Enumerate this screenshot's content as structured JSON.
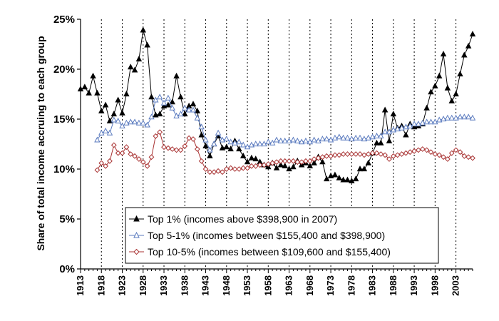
{
  "chart_data": {
    "type": "line",
    "title": "",
    "xlabel": "",
    "ylabel": "Share of total income accruing to each group",
    "xlim": [
      1913,
      2007
    ],
    "ylim": [
      0,
      25
    ],
    "y_ticks": [
      0,
      5,
      10,
      15,
      20,
      25
    ],
    "y_tick_labels": [
      "0%",
      "5%",
      "10%",
      "15%",
      "20%",
      "25%"
    ],
    "x_ticks": [
      1913,
      1918,
      1923,
      1928,
      1933,
      1938,
      1943,
      1948,
      1953,
      1958,
      1963,
      1968,
      1973,
      1978,
      1983,
      1988,
      1993,
      1998,
      2003
    ],
    "x_tick_labels": [
      "1913",
      "1918",
      "1923",
      "1928",
      "1933",
      "1938",
      "1943",
      "1948",
      "1953",
      "1958",
      "1963",
      "1968",
      "1973",
      "1978",
      "1983",
      "1988",
      "1993",
      "1998",
      "2003"
    ],
    "grid": "vertical dashed at x ticks",
    "legend_position": "bottom-left",
    "series": [
      {
        "name": "Top 1% (incomes above $398,900 in 2007)",
        "color": "#000000",
        "marker": "filled-triangle",
        "x": [
          1913,
          1914,
          1915,
          1916,
          1917,
          1918,
          1919,
          1920,
          1921,
          1922,
          1923,
          1924,
          1925,
          1926,
          1927,
          1928,
          1929,
          1930,
          1931,
          1932,
          1933,
          1934,
          1935,
          1936,
          1937,
          1938,
          1939,
          1940,
          1941,
          1942,
          1943,
          1944,
          1945,
          1946,
          1947,
          1948,
          1949,
          1950,
          1951,
          1952,
          1953,
          1954,
          1955,
          1956,
          1957,
          1958,
          1959,
          1960,
          1961,
          1962,
          1963,
          1964,
          1965,
          1966,
          1967,
          1968,
          1969,
          1970,
          1971,
          1972,
          1973,
          1974,
          1975,
          1976,
          1977,
          1978,
          1979,
          1980,
          1981,
          1982,
          1983,
          1984,
          1985,
          1986,
          1987,
          1988,
          1989,
          1990,
          1991,
          1992,
          1993,
          1994,
          1995,
          1996,
          1997,
          1998,
          1999,
          2000,
          2001,
          2002,
          2003,
          2004,
          2005,
          2006,
          2007
        ],
        "values": [
          18.0,
          18.2,
          17.6,
          19.3,
          17.6,
          15.8,
          16.4,
          14.8,
          15.5,
          16.9,
          15.6,
          17.5,
          20.2,
          19.9,
          21.0,
          23.9,
          22.4,
          17.2,
          15.4,
          15.5,
          16.3,
          16.4,
          16.7,
          19.3,
          17.2,
          15.5,
          16.3,
          16.5,
          15.8,
          13.4,
          12.3,
          11.3,
          12.5,
          13.3,
          12.1,
          12.2,
          12.0,
          12.8,
          12.0,
          11.3,
          10.7,
          11.1,
          11.0,
          10.7,
          10.4,
          10.2,
          10.6,
          10.1,
          10.4,
          10.3,
          10.0,
          10.2,
          10.8,
          10.4,
          10.6,
          10.3,
          10.6,
          11.2,
          10.7,
          9.0,
          9.3,
          9.4,
          9.1,
          8.9,
          8.9,
          8.8,
          9.0,
          10.0,
          10.0,
          10.6,
          11.6,
          12.6,
          12.6,
          15.9,
          12.8,
          15.5,
          14.1,
          14.3,
          13.4,
          14.5,
          14.2,
          14.3,
          14.5,
          16.1,
          17.7,
          18.3,
          19.3,
          21.5,
          18.1,
          16.8,
          17.5,
          19.5,
          21.4,
          22.3,
          23.5
        ]
      },
      {
        "name": "Top 5-1% (incomes between $155,400 and $398,900)",
        "color": "#5b7bbf",
        "marker": "hollow-triangle",
        "x": [
          1917,
          1918,
          1919,
          1920,
          1921,
          1922,
          1923,
          1924,
          1925,
          1926,
          1927,
          1928,
          1929,
          1930,
          1931,
          1932,
          1933,
          1934,
          1935,
          1936,
          1937,
          1938,
          1939,
          1940,
          1941,
          1942,
          1943,
          1944,
          1945,
          1946,
          1947,
          1948,
          1949,
          1950,
          1951,
          1952,
          1953,
          1954,
          1955,
          1956,
          1957,
          1958,
          1959,
          1960,
          1961,
          1962,
          1963,
          1964,
          1965,
          1966,
          1967,
          1968,
          1969,
          1970,
          1971,
          1972,
          1973,
          1974,
          1975,
          1976,
          1977,
          1978,
          1979,
          1980,
          1981,
          1982,
          1983,
          1984,
          1985,
          1986,
          1987,
          1988,
          1989,
          1990,
          1991,
          1992,
          1993,
          1994,
          1995,
          1996,
          1997,
          1998,
          1999,
          2000,
          2001,
          2002,
          2003,
          2004,
          2005,
          2006,
          2007
        ],
        "values": [
          12.9,
          13.6,
          13.8,
          13.6,
          14.9,
          14.8,
          14.3,
          14.6,
          14.7,
          14.7,
          14.6,
          14.6,
          14.4,
          15.2,
          16.9,
          17.2,
          16.6,
          17.1,
          16.1,
          15.3,
          15.5,
          16.1,
          15.9,
          15.9,
          15.1,
          14.2,
          12.9,
          11.9,
          12.5,
          13.6,
          12.9,
          13.0,
          12.7,
          12.6,
          12.7,
          12.4,
          12.2,
          12.4,
          12.5,
          12.5,
          12.5,
          12.7,
          12.6,
          12.9,
          12.8,
          12.8,
          12.8,
          12.9,
          12.8,
          12.7,
          12.8,
          12.7,
          12.9,
          12.8,
          13.0,
          13.0,
          12.9,
          13.1,
          13.2,
          13.1,
          13.1,
          13.0,
          13.1,
          13.1,
          13.0,
          13.1,
          13.2,
          13.3,
          13.3,
          13.7,
          13.7,
          13.9,
          14.0,
          14.1,
          14.2,
          14.3,
          14.5,
          14.5,
          14.6,
          14.7,
          14.7,
          14.7,
          14.9,
          15.0,
          15.1,
          15.1,
          15.1,
          15.2,
          15.2,
          15.2,
          15.1
        ]
      },
      {
        "name": "Top 10-5% (incomes between $109,600 and $155,400)",
        "color": "#a83232",
        "marker": "hollow-diamond",
        "x": [
          1917,
          1918,
          1919,
          1920,
          1921,
          1922,
          1923,
          1924,
          1925,
          1926,
          1927,
          1928,
          1929,
          1930,
          1931,
          1932,
          1933,
          1934,
          1935,
          1936,
          1937,
          1938,
          1939,
          1940,
          1941,
          1942,
          1943,
          1944,
          1945,
          1946,
          1947,
          1948,
          1949,
          1950,
          1951,
          1952,
          1953,
          1954,
          1955,
          1956,
          1957,
          1958,
          1959,
          1960,
          1961,
          1962,
          1963,
          1964,
          1965,
          1966,
          1967,
          1968,
          1969,
          1970,
          1971,
          1972,
          1973,
          1974,
          1975,
          1976,
          1977,
          1978,
          1979,
          1980,
          1981,
          1982,
          1983,
          1984,
          1985,
          1986,
          1987,
          1988,
          1989,
          1990,
          1991,
          1992,
          1993,
          1994,
          1995,
          1996,
          1997,
          1998,
          1999,
          2000,
          2001,
          2002,
          2003,
          2004,
          2005,
          2006,
          2007
        ],
        "values": [
          9.9,
          10.6,
          10.3,
          10.8,
          12.4,
          11.6,
          11.6,
          12.2,
          11.5,
          11.3,
          11.0,
          10.7,
          10.3,
          11.2,
          13.3,
          13.7,
          12.2,
          12.1,
          12.0,
          11.9,
          11.9,
          12.3,
          13.1,
          13.0,
          12.0,
          10.8,
          10.0,
          9.7,
          9.7,
          9.8,
          9.7,
          10.0,
          10.1,
          10.0,
          10.0,
          10.1,
          10.1,
          10.3,
          10.3,
          10.4,
          10.4,
          10.5,
          10.6,
          10.7,
          10.8,
          10.8,
          10.8,
          10.8,
          10.7,
          10.7,
          10.8,
          10.8,
          11.0,
          11.1,
          11.2,
          11.3,
          11.3,
          11.4,
          11.4,
          11.5,
          11.5,
          11.5,
          11.5,
          11.5,
          11.4,
          11.5,
          11.6,
          11.6,
          11.5,
          11.4,
          11.0,
          11.3,
          11.4,
          11.5,
          11.6,
          11.7,
          11.8,
          11.9,
          12.0,
          11.9,
          11.7,
          11.5,
          11.4,
          11.2,
          11.0,
          11.6,
          11.9,
          11.7,
          11.3,
          11.2,
          11.1
        ]
      }
    ]
  }
}
